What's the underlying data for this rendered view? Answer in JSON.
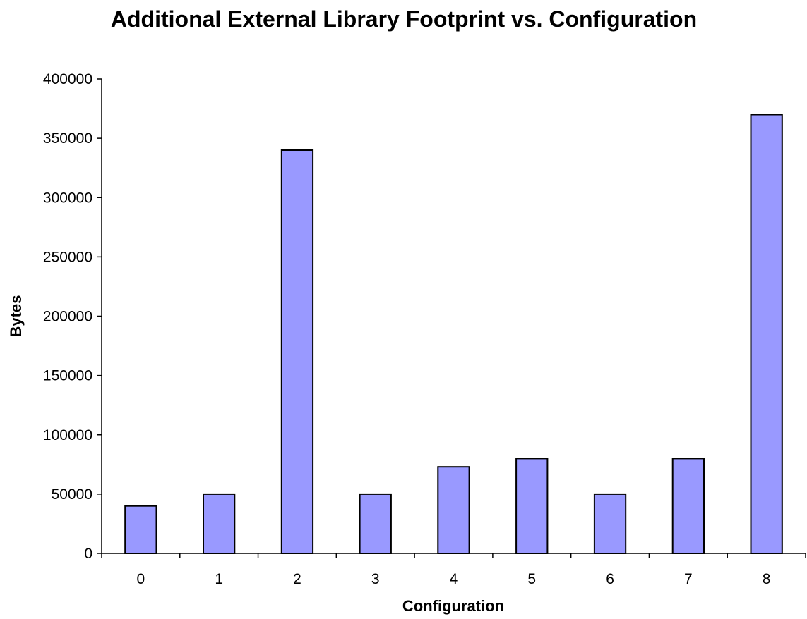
{
  "chart_data": {
    "type": "bar",
    "title": "Additional External Library Footprint vs. Configuration",
    "xlabel": "Configuration",
    "ylabel": "Bytes",
    "categories": [
      "0",
      "1",
      "2",
      "3",
      "4",
      "5",
      "6",
      "7",
      "8"
    ],
    "values": [
      40000,
      50000,
      340000,
      50000,
      73000,
      80000,
      50000,
      80000,
      370000
    ],
    "ylim": [
      0,
      400000
    ],
    "yticks": [
      0,
      50000,
      100000,
      150000,
      200000,
      250000,
      300000,
      350000,
      400000
    ],
    "ytick_labels": [
      "0",
      "50000",
      "100000",
      "150000",
      "200000",
      "250000",
      "300000",
      "350000",
      "400000"
    ],
    "grid": false,
    "legend": "none",
    "bar_color": "#9999ff",
    "bar_edge_color": "#000000"
  }
}
